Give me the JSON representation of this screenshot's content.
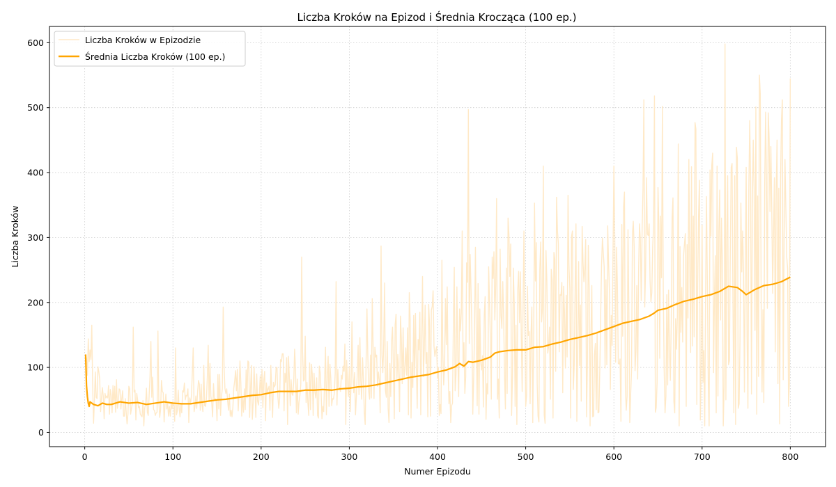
{
  "chart_data": {
    "type": "line",
    "title": "Liczba Kroków na Epizod i Średnia Krocząca (100 ep.)",
    "xlabel": "Numer Epizodu",
    "ylabel": "Liczba Kroków",
    "xlim": [
      -40,
      840
    ],
    "ylim": [
      -22,
      625
    ],
    "xticks": [
      0,
      100,
      200,
      300,
      400,
      500,
      600,
      700,
      800
    ],
    "yticks": [
      0,
      100,
      200,
      300,
      400,
      500,
      600
    ],
    "grid": true,
    "legend_position": "top-left",
    "series": [
      {
        "name": "Liczba Kroków w Epizodzie",
        "color": "#ffe9c7",
        "keypoints": {
          "x": [
            1,
            20,
            40,
            60,
            80,
            100,
            120,
            140,
            160,
            180,
            200,
            220,
            245,
            260,
            280,
            300,
            320,
            340,
            360,
            380,
            400,
            420,
            435,
            440,
            460,
            480,
            500,
            520,
            540,
            560,
            580,
            600,
            620,
            640,
            646,
            660,
            680,
            700,
            720,
            725,
            740,
            750,
            760,
            765,
            780,
            790,
            800
          ],
          "y": [
            120,
            45,
            55,
            40,
            60,
            35,
            55,
            70,
            60,
            70,
            60,
            70,
            75,
            60,
            70,
            80,
            90,
            110,
            100,
            120,
            100,
            140,
            160,
            130,
            150,
            160,
            130,
            170,
            160,
            170,
            160,
            170,
            180,
            190,
            200,
            190,
            210,
            210,
            230,
            240,
            220,
            230,
            250,
            260,
            240,
            260,
            240
          ]
        },
        "peaks": {
          "x": [
            55,
            75,
            83,
            103,
            123,
            157,
            185,
            246,
            285,
            303,
            320,
            336,
            340,
            368,
            383,
            395,
            405,
            428,
            435,
            467,
            480,
            498,
            510,
            520,
            535,
            548,
            567,
            593,
            600,
            612,
            622,
            637,
            646,
            666,
            673,
            685,
            697,
            712,
            720,
            726,
            733,
            744,
            754,
            758,
            765,
            778,
            785,
            791,
            794,
            800
          ],
          "y": [
            162,
            140,
            156,
            130,
            130,
            193,
            110,
            270,
            232,
            170,
            190,
            287,
            230,
            215,
            240,
            218,
            265,
            310,
            497,
            360,
            330,
            310,
            353,
            410,
            362,
            365,
            250,
            318,
            410,
            370,
            325,
            392,
            518,
            330,
            444,
            420,
            388,
            430,
            373,
            598,
            408,
            353,
            480,
            450,
            550,
            440,
            450,
            512,
            420,
            545
          ]
        },
        "dips": {
          "x": [
            10,
            48,
            67,
            90,
            118,
            150,
            190,
            205,
            230,
            265,
            296,
            318,
            345,
            370,
            392,
            415,
            440,
            455,
            470,
            490,
            508,
            522,
            548,
            582,
            612,
            648,
            682,
            716,
            738,
            762,
            788,
            798
          ],
          "y": [
            14,
            13,
            10,
            16,
            15,
            18,
            20,
            18,
            12,
            22,
            12,
            12,
            15,
            22,
            25,
            15,
            28,
            20,
            22,
            12,
            15,
            14,
            20,
            30,
            18,
            38,
            40,
            30,
            12,
            28,
            13,
            40
          ]
        }
      },
      {
        "name": "Średnia Liczba Kroków (100 ep.)",
        "color": "#ffa500",
        "x": [
          1,
          2,
          3,
          4,
          5,
          6,
          8,
          10,
          15,
          20,
          25,
          30,
          40,
          50,
          60,
          70,
          80,
          90,
          100,
          110,
          120,
          130,
          140,
          150,
          160,
          170,
          180,
          190,
          200,
          210,
          220,
          230,
          240,
          250,
          260,
          270,
          280,
          290,
          300,
          310,
          320,
          330,
          340,
          350,
          360,
          370,
          380,
          390,
          400,
          410,
          420,
          425,
          430,
          435,
          440,
          450,
          460,
          465,
          470,
          480,
          490,
          500,
          510,
          520,
          530,
          540,
          550,
          560,
          570,
          580,
          590,
          600,
          610,
          620,
          630,
          640,
          645,
          650,
          660,
          670,
          680,
          690,
          700,
          710,
          720,
          730,
          740,
          745,
          750,
          760,
          770,
          780,
          790,
          800
        ],
        "y": [
          120,
          72,
          55,
          45,
          40,
          47,
          45,
          43,
          41,
          45,
          43,
          43,
          47,
          45,
          46,
          43,
          45,
          47,
          45,
          44,
          44,
          46,
          48,
          50,
          51,
          53,
          55,
          57,
          58,
          61,
          63,
          63,
          63,
          65,
          65,
          66,
          65,
          67,
          68,
          70,
          71,
          73,
          76,
          79,
          82,
          85,
          87,
          89,
          93,
          96,
          101,
          106,
          102,
          109,
          108,
          111,
          116,
          122,
          124,
          126,
          127,
          127,
          131,
          132,
          136,
          139,
          143,
          146,
          149,
          153,
          158,
          163,
          168,
          171,
          174,
          179,
          183,
          188,
          191,
          197,
          202,
          205,
          209,
          212,
          217,
          225,
          223,
          218,
          212,
          220,
          226,
          228,
          232,
          239
        ]
      }
    ]
  }
}
